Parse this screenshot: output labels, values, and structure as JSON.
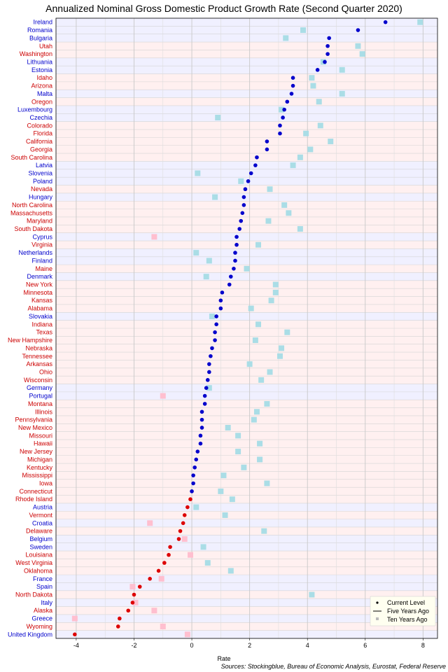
{
  "chart_data": {
    "type": "scatter",
    "title": "Annualized Nominal Gross Domestic Product Growth Rate (Second Quarter 2020)",
    "xlabel": "Rate",
    "source": "Sources: Stockingblue, Bureau of Economic Analysis, Eurostat, Federal Reserve",
    "xlim": [
      -4.7,
      8.5
    ],
    "xticks": [
      -4,
      -2,
      0,
      2,
      4,
      6,
      8
    ],
    "grid": true,
    "legend_position": "bottom-right",
    "legend": [
      "Current Level",
      "Five Years Ago",
      "Ten Years Ago"
    ],
    "colors": {
      "eu_text": "#0000cc",
      "us_text": "#cc0000",
      "eu_band": "#f0f0ff",
      "us_band": "#fff0f0",
      "pos_point": "#0000cc",
      "neg_point": "#dd0000",
      "pos_ten": "#aadde6",
      "neg_ten": "#ffbfcf"
    },
    "rows": [
      {
        "name": "Ireland",
        "region": "eu",
        "current": 6.7,
        "ten_years_ago": 7.9
      },
      {
        "name": "Romania",
        "region": "eu",
        "current": 5.75,
        "ten_years_ago": 3.85
      },
      {
        "name": "Bulgaria",
        "region": "eu",
        "current": 4.75,
        "ten_years_ago": 3.25
      },
      {
        "name": "Utah",
        "region": "us",
        "current": 4.7,
        "ten_years_ago": 5.75
      },
      {
        "name": "Washington",
        "region": "us",
        "current": 4.7,
        "ten_years_ago": 5.9
      },
      {
        "name": "Lithuania",
        "region": "eu",
        "current": 4.6,
        "ten_years_ago": 4.55
      },
      {
        "name": "Estonia",
        "region": "eu",
        "current": 4.35,
        "ten_years_ago": 5.2
      },
      {
        "name": "Idaho",
        "region": "us",
        "current": 3.5,
        "ten_years_ago": 4.15
      },
      {
        "name": "Arizona",
        "region": "us",
        "current": 3.5,
        "ten_years_ago": 4.2
      },
      {
        "name": "Malta",
        "region": "eu",
        "current": 3.45,
        "ten_years_ago": 5.2
      },
      {
        "name": "Oregon",
        "region": "us",
        "current": 3.3,
        "ten_years_ago": 4.4
      },
      {
        "name": "Luxembourg",
        "region": "eu",
        "current": 3.2,
        "ten_years_ago": 3.1
      },
      {
        "name": "Czechia",
        "region": "eu",
        "current": 3.15,
        "ten_years_ago": 0.9
      },
      {
        "name": "Colorado",
        "region": "us",
        "current": 3.05,
        "ten_years_ago": 4.45
      },
      {
        "name": "Florida",
        "region": "us",
        "current": 3.05,
        "ten_years_ago": 3.95
      },
      {
        "name": "California",
        "region": "us",
        "current": 2.6,
        "ten_years_ago": 4.8
      },
      {
        "name": "Georgia",
        "region": "us",
        "current": 2.6,
        "ten_years_ago": 4.1
      },
      {
        "name": "South Carolina",
        "region": "us",
        "current": 2.25,
        "ten_years_ago": 3.75
      },
      {
        "name": "Latvia",
        "region": "eu",
        "current": 2.2,
        "ten_years_ago": 3.5
      },
      {
        "name": "Slovenia",
        "region": "eu",
        "current": 2.05,
        "ten_years_ago": 0.2
      },
      {
        "name": "Poland",
        "region": "eu",
        "current": 1.95,
        "ten_years_ago": 1.7
      },
      {
        "name": "Nevada",
        "region": "us",
        "current": 1.85,
        "ten_years_ago": 2.7
      },
      {
        "name": "Hungary",
        "region": "eu",
        "current": 1.8,
        "ten_years_ago": 0.8
      },
      {
        "name": "North Carolina",
        "region": "us",
        "current": 1.8,
        "ten_years_ago": 3.2
      },
      {
        "name": "Massachusetts",
        "region": "us",
        "current": 1.75,
        "ten_years_ago": 3.35
      },
      {
        "name": "Maryland",
        "region": "us",
        "current": 1.7,
        "ten_years_ago": 2.65
      },
      {
        "name": "South Dakota",
        "region": "us",
        "current": 1.65,
        "ten_years_ago": 3.75
      },
      {
        "name": "Cyprus",
        "region": "eu",
        "current": 1.55,
        "ten_years_ago": -1.3
      },
      {
        "name": "Virginia",
        "region": "us",
        "current": 1.55,
        "ten_years_ago": 2.3
      },
      {
        "name": "Netherlands",
        "region": "eu",
        "current": 1.5,
        "ten_years_ago": 0.15
      },
      {
        "name": "Finland",
        "region": "eu",
        "current": 1.5,
        "ten_years_ago": 0.6
      },
      {
        "name": "Maine",
        "region": "us",
        "current": 1.45,
        "ten_years_ago": 1.9
      },
      {
        "name": "Denmark",
        "region": "eu",
        "current": 1.35,
        "ten_years_ago": 0.5
      },
      {
        "name": "New York",
        "region": "us",
        "current": 1.3,
        "ten_years_ago": 2.9
      },
      {
        "name": "Minnesota",
        "region": "us",
        "current": 1.05,
        "ten_years_ago": 2.9
      },
      {
        "name": "Kansas",
        "region": "us",
        "current": 1.0,
        "ten_years_ago": 2.75
      },
      {
        "name": "Alabama",
        "region": "us",
        "current": 1.0,
        "ten_years_ago": 2.05
      },
      {
        "name": "Slovakia",
        "region": "eu",
        "current": 0.85,
        "ten_years_ago": 0.7
      },
      {
        "name": "Indiana",
        "region": "us",
        "current": 0.85,
        "ten_years_ago": 2.3
      },
      {
        "name": "Texas",
        "region": "us",
        "current": 0.8,
        "ten_years_ago": 3.3
      },
      {
        "name": "New Hampshire",
        "region": "us",
        "current": 0.8,
        "ten_years_ago": 2.2
      },
      {
        "name": "Nebraska",
        "region": "us",
        "current": 0.7,
        "ten_years_ago": 3.1
      },
      {
        "name": "Tennessee",
        "region": "us",
        "current": 0.65,
        "ten_years_ago": 3.05
      },
      {
        "name": "Arkansas",
        "region": "us",
        "current": 0.6,
        "ten_years_ago": 2.0
      },
      {
        "name": "Ohio",
        "region": "us",
        "current": 0.6,
        "ten_years_ago": 2.7
      },
      {
        "name": "Wisconsin",
        "region": "us",
        "current": 0.55,
        "ten_years_ago": 2.4
      },
      {
        "name": "Germany",
        "region": "eu",
        "current": 0.5,
        "ten_years_ago": 0.6
      },
      {
        "name": "Portugal",
        "region": "eu",
        "current": 0.45,
        "ten_years_ago": -1.0
      },
      {
        "name": "Montana",
        "region": "us",
        "current": 0.45,
        "ten_years_ago": 2.6
      },
      {
        "name": "Illinois",
        "region": "us",
        "current": 0.35,
        "ten_years_ago": 2.25
      },
      {
        "name": "Pennsylvania",
        "region": "us",
        "current": 0.35,
        "ten_years_ago": 2.15
      },
      {
        "name": "New Mexico",
        "region": "us",
        "current": 0.35,
        "ten_years_ago": 1.25
      },
      {
        "name": "Missouri",
        "region": "us",
        "current": 0.3,
        "ten_years_ago": 1.6
      },
      {
        "name": "Hawaii",
        "region": "us",
        "current": 0.3,
        "ten_years_ago": 2.35
      },
      {
        "name": "New Jersey",
        "region": "us",
        "current": 0.2,
        "ten_years_ago": 1.6
      },
      {
        "name": "Michigan",
        "region": "us",
        "current": 0.15,
        "ten_years_ago": 2.35
      },
      {
        "name": "Kentucky",
        "region": "us",
        "current": 0.1,
        "ten_years_ago": 1.8
      },
      {
        "name": "Mississippi",
        "region": "us",
        "current": 0.05,
        "ten_years_ago": 1.1
      },
      {
        "name": "Iowa",
        "region": "us",
        "current": 0.05,
        "ten_years_ago": 2.6
      },
      {
        "name": "Connecticut",
        "region": "us",
        "current": 0.0,
        "ten_years_ago": 1.0
      },
      {
        "name": "Rhode Island",
        "region": "us",
        "current": -0.05,
        "ten_years_ago": 1.4
      },
      {
        "name": "Austria",
        "region": "eu",
        "current": -0.15,
        "ten_years_ago": 0.15
      },
      {
        "name": "Vermont",
        "region": "us",
        "current": -0.25,
        "ten_years_ago": 1.15
      },
      {
        "name": "Croatia",
        "region": "eu",
        "current": -0.3,
        "ten_years_ago": -1.45
      },
      {
        "name": "Delaware",
        "region": "us",
        "current": -0.4,
        "ten_years_ago": 2.5
      },
      {
        "name": "Belgium",
        "region": "eu",
        "current": -0.45,
        "ten_years_ago": -0.25
      },
      {
        "name": "Sweden",
        "region": "eu",
        "current": -0.75,
        "ten_years_ago": 0.4
      },
      {
        "name": "Louisiana",
        "region": "us",
        "current": -0.8,
        "ten_years_ago": -0.05
      },
      {
        "name": "West Virginia",
        "region": "us",
        "current": -0.95,
        "ten_years_ago": 0.55
      },
      {
        "name": "Oklahoma",
        "region": "us",
        "current": -1.15,
        "ten_years_ago": 1.35
      },
      {
        "name": "France",
        "region": "eu",
        "current": -1.45,
        "ten_years_ago": -1.05
      },
      {
        "name": "Spain",
        "region": "eu",
        "current": -1.8,
        "ten_years_ago": -2.05
      },
      {
        "name": "North Dakota",
        "region": "us",
        "current": -2.0,
        "ten_years_ago": 4.15
      },
      {
        "name": "Italy",
        "region": "eu",
        "current": -2.05,
        "ten_years_ago": -1.95
      },
      {
        "name": "Alaska",
        "region": "us",
        "current": -2.2,
        "ten_years_ago": -1.3
      },
      {
        "name": "Greece",
        "region": "eu",
        "current": -2.5,
        "ten_years_ago": -4.05
      },
      {
        "name": "Wyoming",
        "region": "us",
        "current": -2.55,
        "ten_years_ago": -1.0
      },
      {
        "name": "United Kingdom",
        "region": "eu",
        "current": -4.05,
        "ten_years_ago": -0.15
      }
    ]
  }
}
